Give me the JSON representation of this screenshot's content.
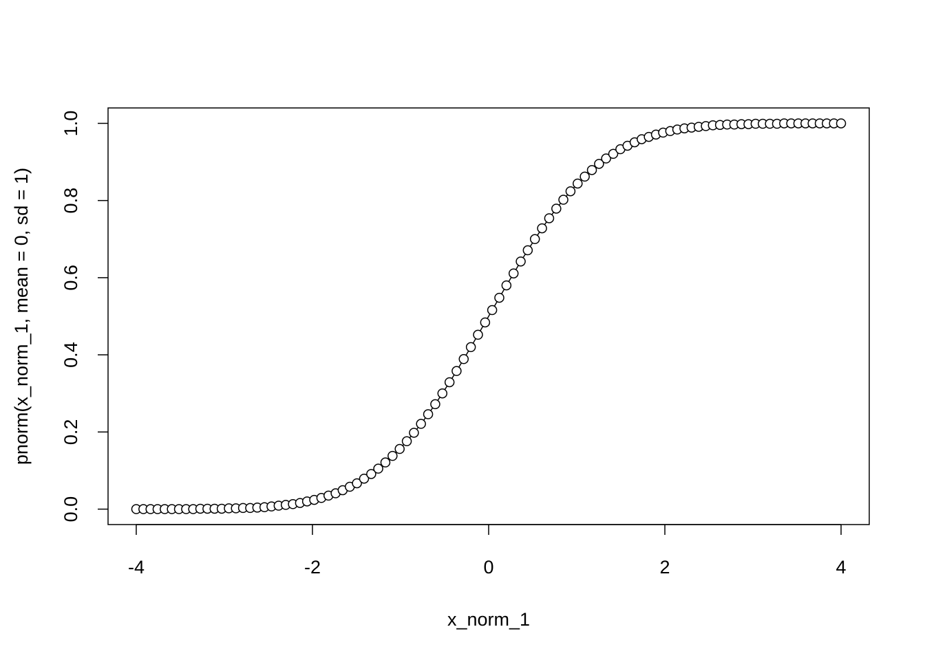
{
  "chart_data": {
    "type": "line",
    "x_label": "x_norm_1",
    "y_label": "pnorm(x_norm_1, mean = 0, sd = 1)",
    "marker": "circle",
    "color": "#000000",
    "x": [
      -4.0,
      -3.919,
      -3.838,
      -3.758,
      -3.677,
      -3.596,
      -3.515,
      -3.434,
      -3.354,
      -3.273,
      -3.192,
      -3.111,
      -3.03,
      -2.949,
      -2.869,
      -2.788,
      -2.707,
      -2.626,
      -2.545,
      -2.465,
      -2.384,
      -2.303,
      -2.222,
      -2.141,
      -2.061,
      -1.98,
      -1.899,
      -1.818,
      -1.737,
      -1.657,
      -1.576,
      -1.495,
      -1.414,
      -1.333,
      -1.253,
      -1.172,
      -1.091,
      -1.01,
      -0.929,
      -0.848,
      -0.768,
      -0.687,
      -0.606,
      -0.525,
      -0.444,
      -0.364,
      -0.283,
      -0.202,
      -0.121,
      -0.04,
      0.04,
      0.121,
      0.202,
      0.283,
      0.364,
      0.444,
      0.525,
      0.606,
      0.687,
      0.768,
      0.848,
      0.929,
      1.01,
      1.091,
      1.172,
      1.253,
      1.333,
      1.414,
      1.495,
      1.576,
      1.657,
      1.737,
      1.818,
      1.899,
      1.98,
      2.061,
      2.141,
      2.222,
      2.303,
      2.384,
      2.465,
      2.545,
      2.626,
      2.707,
      2.788,
      2.869,
      2.949,
      3.03,
      3.111,
      3.192,
      3.273,
      3.354,
      3.434,
      3.515,
      3.596,
      3.677,
      3.758,
      3.838,
      3.919,
      4.0
    ],
    "values": [
      0,
      0,
      0,
      0,
      0,
      0,
      0,
      0,
      0,
      0.001,
      0.001,
      0.001,
      0.001,
      0.002,
      0.002,
      0.003,
      0.003,
      0.004,
      0.005,
      0.007,
      0.009,
      0.011,
      0.013,
      0.016,
      0.02,
      0.024,
      0.029,
      0.035,
      0.041,
      0.049,
      0.058,
      0.067,
      0.079,
      0.091,
      0.105,
      0.121,
      0.138,
      0.156,
      0.176,
      0.198,
      0.221,
      0.246,
      0.272,
      0.3,
      0.329,
      0.358,
      0.389,
      0.42,
      0.452,
      0.484,
      0.516,
      0.548,
      0.58,
      0.611,
      0.642,
      0.671,
      0.7,
      0.728,
      0.754,
      0.779,
      0.802,
      0.824,
      0.844,
      0.862,
      0.879,
      0.895,
      0.909,
      0.921,
      0.933,
      0.942,
      0.951,
      0.959,
      0.965,
      0.971,
      0.976,
      0.98,
      0.984,
      0.987,
      0.989,
      0.991,
      0.993,
      0.995,
      0.996,
      0.997,
      0.997,
      0.998,
      0.998,
      0.999,
      0.999,
      0.999,
      0.999,
      1,
      1,
      1,
      1,
      1,
      1,
      1,
      1,
      1
    ],
    "xlim": [
      -4.32,
      4.32
    ],
    "xticks": [
      -4,
      -2,
      0,
      2,
      4
    ],
    "ylim": [
      -0.04,
      1.04
    ],
    "yticks": [
      {
        "value": 0,
        "label": "0.0"
      },
      0.2,
      0.4,
      0.6,
      0.8,
      {
        "value": 1,
        "label": "1.0"
      }
    ]
  }
}
